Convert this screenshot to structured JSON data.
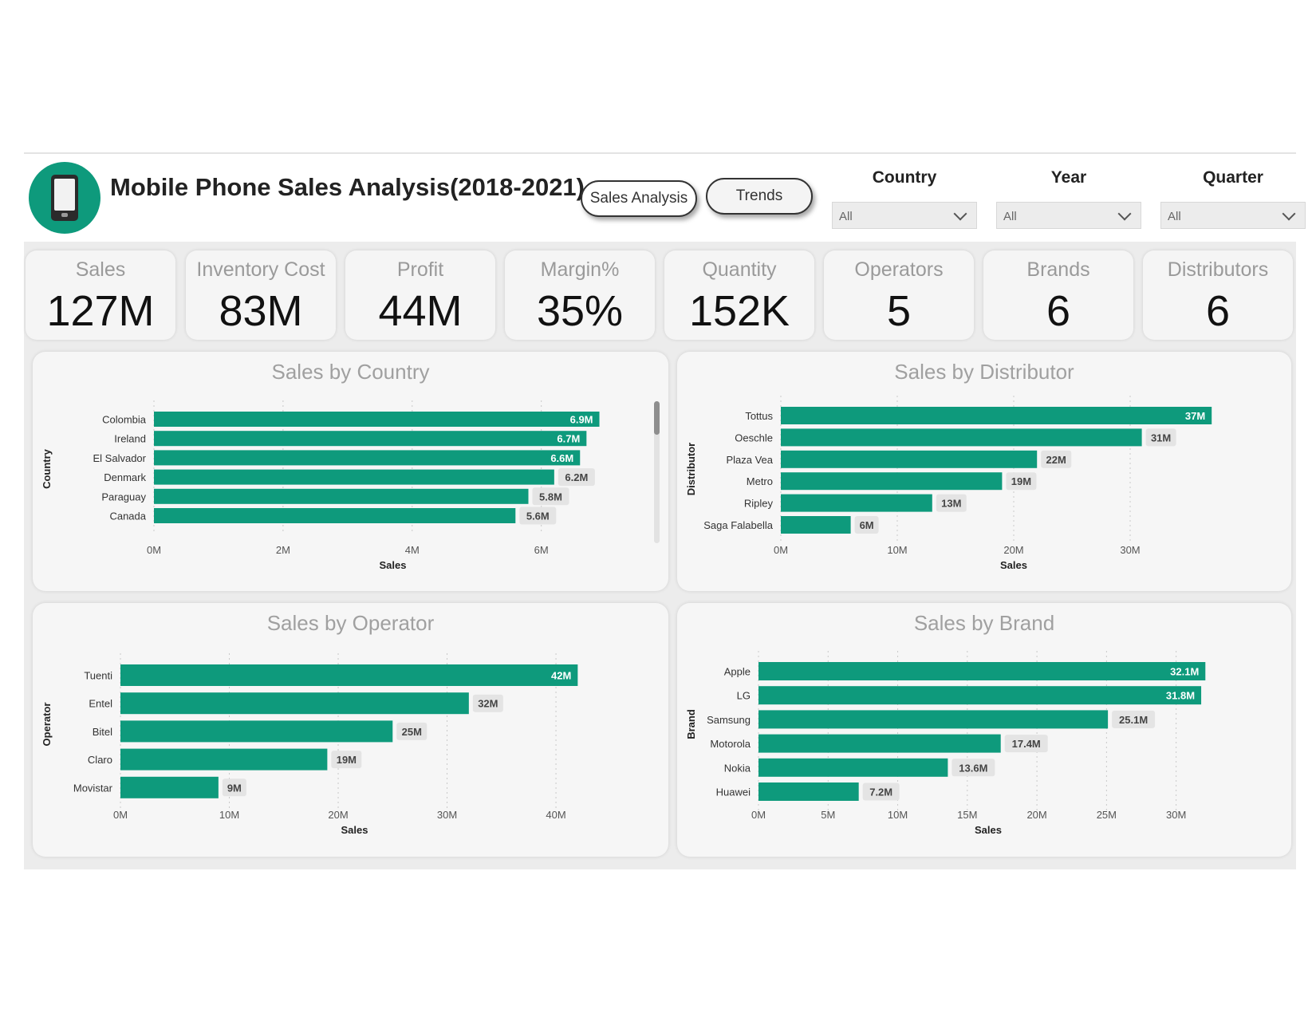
{
  "header": {
    "title": "Mobile Phone Sales Analysis(2018-2021)",
    "nav_buttons": {
      "sales_analysis": "Sales Analysis",
      "trends": "Trends"
    },
    "filters": {
      "country": {
        "label": "Country",
        "value": "All"
      },
      "year": {
        "label": "Year",
        "value": "All"
      },
      "quarter": {
        "label": "Quarter",
        "value": "All"
      }
    }
  },
  "kpis": [
    {
      "label": "Sales",
      "value": "127M"
    },
    {
      "label": "Inventory Cost",
      "value": "83M"
    },
    {
      "label": "Profit",
      "value": "44M"
    },
    {
      "label": "Margin%",
      "value": "35%"
    },
    {
      "label": "Quantity",
      "value": "152K"
    },
    {
      "label": "Operators",
      "value": "5"
    },
    {
      "label": "Brands",
      "value": "6"
    },
    {
      "label": "Distributors",
      "value": "6"
    }
  ],
  "colors": {
    "bar": "#0e9a7c",
    "label_bg": "#e4e4e4"
  },
  "chart_data": [
    {
      "type": "bar",
      "orientation": "horizontal",
      "title": "Sales by Country",
      "xlabel": "Sales",
      "ylabel": "Country",
      "categories": [
        "Colombia",
        "Ireland",
        "El Salvador",
        "Denmark",
        "Paraguay",
        "Canada"
      ],
      "values": [
        6.9,
        6.7,
        6.6,
        6.2,
        5.8,
        5.6
      ],
      "data_labels": [
        "6.9M",
        "6.7M",
        "6.6M",
        "6.2M",
        "5.8M",
        "5.6M"
      ],
      "xticks": [
        0,
        2,
        4,
        6
      ],
      "xtick_labels": [
        "0M",
        "2M",
        "4M",
        "6M"
      ],
      "xlim": [
        0,
        7.4
      ],
      "grid": true
    },
    {
      "type": "bar",
      "orientation": "horizontal",
      "title": "Sales by Distributor",
      "xlabel": "Sales",
      "ylabel": "Distributor",
      "categories": [
        "Tottus",
        "Oeschle",
        "Plaza Vea",
        "Metro",
        "Ripley",
        "Saga Falabella"
      ],
      "values": [
        37,
        31,
        22,
        19,
        13,
        6
      ],
      "data_labels": [
        "37M",
        "31M",
        "22M",
        "19M",
        "13M",
        "6M"
      ],
      "xticks": [
        0,
        10,
        20,
        30
      ],
      "xtick_labels": [
        "0M",
        "10M",
        "20M",
        "30M"
      ],
      "xlim": [
        0,
        40
      ],
      "grid": true
    },
    {
      "type": "bar",
      "orientation": "horizontal",
      "title": "Sales by Operator",
      "xlabel": "Sales",
      "ylabel": "Operator",
      "categories": [
        "Tuenti",
        "Entel",
        "Bitel",
        "Claro",
        "Movistar"
      ],
      "values": [
        42,
        32,
        25,
        19,
        9
      ],
      "data_labels": [
        "42M",
        "32M",
        "25M",
        "19M",
        "9M"
      ],
      "xticks": [
        0,
        10,
        20,
        30,
        40
      ],
      "xtick_labels": [
        "0M",
        "10M",
        "20M",
        "30M",
        "40M"
      ],
      "xlim": [
        0,
        43
      ],
      "grid": true
    },
    {
      "type": "bar",
      "orientation": "horizontal",
      "title": "Sales by Brand",
      "xlabel": "Sales",
      "ylabel": "Brand",
      "categories": [
        "Apple",
        "LG",
        "Samsung",
        "Motorola",
        "Nokia",
        "Huawei"
      ],
      "values": [
        32.1,
        31.8,
        25.1,
        17.4,
        13.6,
        7.2
      ],
      "data_labels": [
        "32.1M",
        "31.8M",
        "25.1M",
        "17.4M",
        "13.6M",
        "7.2M"
      ],
      "xticks": [
        0,
        5,
        10,
        15,
        20,
        25,
        30
      ],
      "xtick_labels": [
        "0M",
        "5M",
        "10M",
        "15M",
        "20M",
        "25M",
        "30M"
      ],
      "xlim": [
        0,
        33
      ],
      "grid": true
    }
  ]
}
